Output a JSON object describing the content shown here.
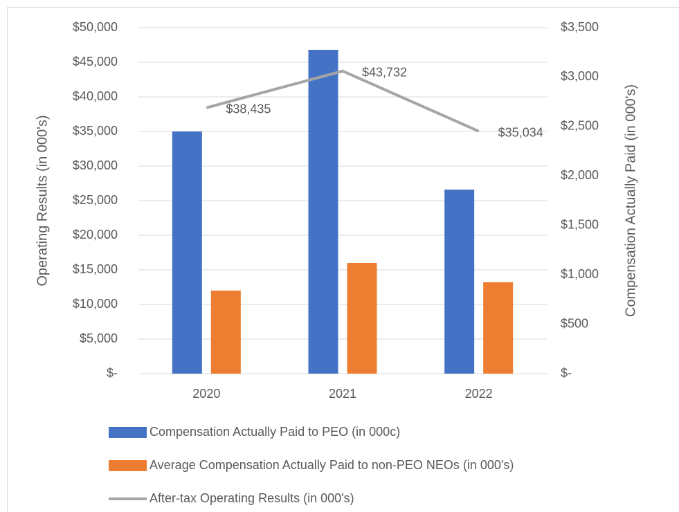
{
  "chart_data": {
    "type": "bar",
    "categories": [
      "2020",
      "2021",
      "2022"
    ],
    "series": [
      {
        "name": "Compensation Actually Paid to PEO (in 000c)",
        "type": "bar",
        "axis": "y2",
        "color": "#4472c4",
        "values": [
          2450,
          3276,
          1862
        ]
      },
      {
        "name": "Average Compensation Actually Paid to non-PEO NEOs  (in 000's)",
        "type": "bar",
        "axis": "y2",
        "color": "#ed7d31",
        "values": [
          840,
          1120,
          924
        ]
      },
      {
        "name": "After-tax Operating Results (in 000's)",
        "type": "line",
        "axis": "y",
        "color": "#a5a5a5",
        "values": [
          38435,
          43732,
          35034
        ],
        "value_labels": [
          "$38,435",
          "$43,732",
          "$35,034"
        ]
      }
    ],
    "y_label": "Operating Results (in 000's)",
    "y2_label": "Compensation Actually Paid (in 000's)",
    "ylim": [
      0,
      50000
    ],
    "yticks": [
      {
        "value": 0,
        "label": "$-"
      },
      {
        "value": 5000,
        "label": "$5,000"
      },
      {
        "value": 10000,
        "label": "$10,000"
      },
      {
        "value": 15000,
        "label": "$15,000"
      },
      {
        "value": 20000,
        "label": "$20,000"
      },
      {
        "value": 25000,
        "label": "$25,000"
      },
      {
        "value": 30000,
        "label": "$30,000"
      },
      {
        "value": 35000,
        "label": "$35,000"
      },
      {
        "value": 40000,
        "label": "$40,000"
      },
      {
        "value": 45000,
        "label": "$45,000"
      },
      {
        "value": 50000,
        "label": "$50,000"
      }
    ],
    "y2lim": [
      0,
      3500
    ],
    "y2ticks": [
      {
        "value": 0,
        "label": "$-"
      },
      {
        "value": 500,
        "label": "$500"
      },
      {
        "value": 1000,
        "label": "$1,000"
      },
      {
        "value": 1500,
        "label": "$1,500"
      },
      {
        "value": 2000,
        "label": "$2,000"
      },
      {
        "value": 2500,
        "label": "$2,500"
      },
      {
        "value": 3000,
        "label": "$3,000"
      },
      {
        "value": 3500,
        "label": "$3,500"
      }
    ],
    "grid": true,
    "legend": "bottom"
  }
}
